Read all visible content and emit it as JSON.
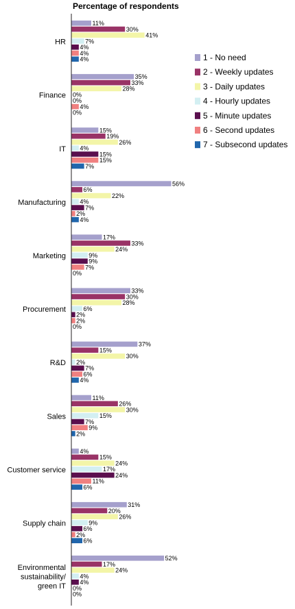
{
  "chart_data": {
    "type": "bar",
    "orientation": "horizontal",
    "title": "Percentage of respondents",
    "xlim": [
      0,
      60
    ],
    "grid": false,
    "legend_position": "right",
    "value_suffix": "%",
    "categories": [
      [
        "HR"
      ],
      [
        "Finance"
      ],
      [
        "IT"
      ],
      [
        "Manufacturing"
      ],
      [
        "Marketing"
      ],
      [
        "Procurement"
      ],
      [
        "R&D"
      ],
      [
        "Sales"
      ],
      [
        "Customer service"
      ],
      [
        "Supply chain"
      ],
      [
        "Environmental",
        "sustainability/",
        "green IT"
      ]
    ],
    "series": [
      {
        "name": "1 - No need",
        "color": "#a5a0cc",
        "values": [
          11,
          35,
          15,
          56,
          17,
          33,
          37,
          11,
          4,
          31,
          52
        ]
      },
      {
        "name": "2 - Weekly updates",
        "color": "#993366",
        "values": [
          30,
          33,
          19,
          6,
          33,
          30,
          15,
          26,
          15,
          20,
          17
        ]
      },
      {
        "name": "3 - Daily updates",
        "color": "#f3f5a8",
        "values": [
          41,
          28,
          26,
          22,
          24,
          28,
          30,
          30,
          24,
          26,
          24
        ]
      },
      {
        "name": "4 - Hourly updates",
        "color": "#d3eff2",
        "values": [
          7,
          0,
          4,
          4,
          9,
          6,
          2,
          15,
          17,
          9,
          4
        ]
      },
      {
        "name": "5 - Minute updates",
        "color": "#5a0f4e",
        "values": [
          4,
          0,
          15,
          7,
          9,
          2,
          7,
          7,
          24,
          6,
          4
        ]
      },
      {
        "name": "6 - Second updates",
        "color": "#f08080",
        "values": [
          4,
          4,
          15,
          2,
          7,
          2,
          6,
          9,
          11,
          2,
          0
        ]
      },
      {
        "name": "7 - Subsecond updates",
        "color": "#2166ac",
        "values": [
          4,
          0,
          7,
          4,
          0,
          0,
          4,
          2,
          6,
          6,
          0
        ]
      }
    ]
  }
}
